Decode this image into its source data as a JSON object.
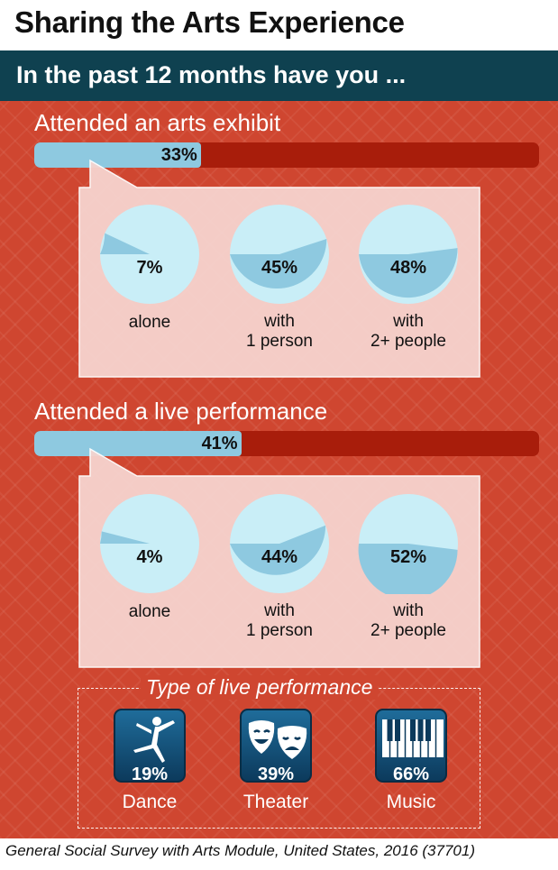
{
  "title": "Sharing the Arts Experience",
  "banner": "In the past 12 months have you ...",
  "colors": {
    "background": "#cf4630",
    "banner": "#0f4150",
    "bar_track": "#a81d0b",
    "bar_fill": "#8ec9e0",
    "pie_dark": "#8ec9e0",
    "pie_light": "#c9eef7",
    "callout": "#f6d4cf"
  },
  "chart_data": [
    {
      "type": "bar",
      "title": "Attended an arts exhibit",
      "values": [
        33
      ],
      "value_label": "33%",
      "max": 100
    },
    {
      "type": "pie",
      "series": [
        {
          "category": "alone",
          "caption": [
            "alone"
          ],
          "value": 7,
          "label": "7%"
        },
        {
          "category": "with 1 person",
          "caption": [
            "with",
            "1 person"
          ],
          "value": 45,
          "label": "45%"
        },
        {
          "category": "with 2+ people",
          "caption": [
            "with",
            "2+ people"
          ],
          "value": 48,
          "label": "48%"
        }
      ]
    },
    {
      "type": "bar",
      "title": "Attended a live performance",
      "values": [
        41
      ],
      "value_label": "41%",
      "max": 100
    },
    {
      "type": "pie",
      "series": [
        {
          "category": "alone",
          "caption": [
            "alone"
          ],
          "value": 4,
          "label": "4%"
        },
        {
          "category": "with 1 person",
          "caption": [
            "with",
            "1 person"
          ],
          "value": 44,
          "label": "44%"
        },
        {
          "category": "with 2+ people",
          "caption": [
            "with",
            "2+ people"
          ],
          "value": 52,
          "label": "52%"
        }
      ]
    },
    {
      "type": "table",
      "title": "Type of live performance",
      "categories": [
        "Dance",
        "Theater",
        "Music"
      ],
      "values": [
        19,
        39,
        66
      ],
      "value_labels": [
        "19%",
        "39%",
        "66%"
      ],
      "icons": [
        "ballet-dancer-icon",
        "theater-masks-icon",
        "piano-keys-icon"
      ]
    }
  ],
  "source": "General Social Survey with Arts Module, United States, 2016 (37701)"
}
